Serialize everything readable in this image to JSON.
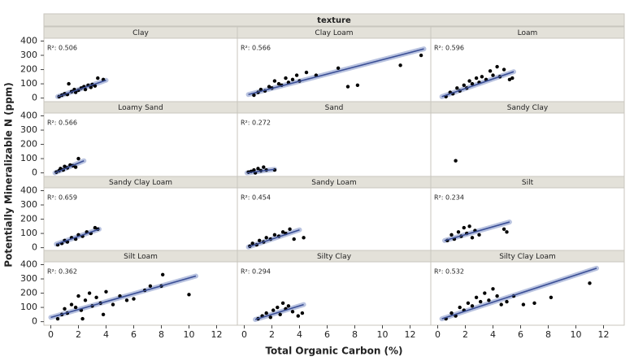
{
  "chart_data": {
    "type": "scatter",
    "title": "texture",
    "x_label": "Total Organic Carbon (%)",
    "y_label": "Potentially Mineralizable N (ppm)",
    "xlim": [
      -0.5,
      13.5
    ],
    "ylim": [
      -25,
      420
    ],
    "xticks": [
      0,
      2,
      4,
      6,
      8,
      10,
      12
    ],
    "yticks": [
      0,
      100,
      200,
      300,
      400
    ],
    "point_color": "#000000",
    "fit_color": "#3b4f96",
    "band_color": "#b9c3e0",
    "panels": [
      {
        "name": "Clay",
        "annotation": "R²: 0.506",
        "x": [
          0.6,
          0.8,
          1.0,
          1.2,
          1.3,
          1.5,
          1.7,
          1.8,
          2.0,
          2.2,
          2.4,
          2.5,
          2.7,
          2.9,
          3.0,
          3.2,
          3.4,
          3.8
        ],
        "y": [
          10,
          20,
          30,
          25,
          100,
          45,
          60,
          40,
          55,
          70,
          80,
          60,
          90,
          75,
          95,
          85,
          140,
          130
        ],
        "fit": {
          "x": [
            0.5,
            4.0
          ],
          "y": [
            10,
            125
          ]
        }
      },
      {
        "name": "Clay Loam",
        "annotation": "R²: 0.566",
        "x": [
          0.7,
          1.0,
          1.2,
          1.5,
          1.8,
          2.0,
          2.2,
          2.5,
          2.7,
          3.0,
          3.2,
          3.5,
          3.8,
          4.0,
          4.5,
          5.2,
          6.8,
          7.5,
          8.2,
          11.3,
          12.8
        ],
        "y": [
          20,
          40,
          60,
          50,
          80,
          70,
          120,
          100,
          90,
          140,
          110,
          130,
          160,
          120,
          180,
          160,
          210,
          80,
          90,
          230,
          300
        ],
        "fit": {
          "x": [
            0.3,
            13
          ],
          "y": [
            25,
            345
          ]
        }
      },
      {
        "name": "Loam",
        "annotation": "R²: 0.596",
        "x": [
          0.6,
          0.9,
          1.1,
          1.4,
          1.6,
          1.9,
          2.1,
          2.3,
          2.5,
          2.8,
          3.0,
          3.2,
          3.5,
          3.8,
          4.0,
          4.3,
          4.5,
          4.8,
          5.2,
          5.4
        ],
        "y": [
          10,
          40,
          30,
          70,
          50,
          90,
          70,
          120,
          100,
          140,
          110,
          150,
          130,
          190,
          160,
          220,
          150,
          200,
          130,
          140
        ],
        "fit": {
          "x": [
            0.3,
            5.5
          ],
          "y": [
            10,
            185
          ]
        }
      },
      {
        "name": "Loamy Sand",
        "annotation": "R²: 0.566",
        "x": [
          0.4,
          0.6,
          0.7,
          0.9,
          1.0,
          1.2,
          1.4,
          1.6,
          2.0,
          1.8
        ],
        "y": [
          5,
          15,
          30,
          20,
          45,
          35,
          55,
          50,
          100,
          40
        ],
        "fit": {
          "x": [
            0.3,
            2.4
          ],
          "y": [
            0,
            85
          ]
        }
      },
      {
        "name": "Sand",
        "annotation": "R²: 0.272",
        "x": [
          0.3,
          0.5,
          0.7,
          0.8,
          1.0,
          1.2,
          1.4,
          1.6,
          2.2
        ],
        "y": [
          5,
          10,
          20,
          0,
          30,
          15,
          40,
          20,
          20
        ],
        "fit": {
          "x": [
            0.2,
            2.2
          ],
          "y": [
            0,
            25
          ]
        }
      },
      {
        "name": "Sandy Clay",
        "x": [
          1.3
        ],
        "y": [
          85
        ]
      },
      {
        "name": "Sandy Clay Loam",
        "annotation": "R²: 0.659",
        "x": [
          0.5,
          0.8,
          1.0,
          1.2,
          1.5,
          1.8,
          2.0,
          2.3,
          2.6,
          2.9,
          3.2,
          3.4
        ],
        "y": [
          20,
          30,
          50,
          40,
          70,
          60,
          90,
          80,
          110,
          100,
          140,
          130
        ],
        "fit": {
          "x": [
            0.4,
            3.5
          ],
          "y": [
            25,
            130
          ]
        }
      },
      {
        "name": "Sandy Loam",
        "annotation": "R²: 0.454",
        "x": [
          0.4,
          0.6,
          0.9,
          1.1,
          1.4,
          1.6,
          1.9,
          2.2,
          2.5,
          2.8,
          3.0,
          3.3,
          3.6,
          4.3
        ],
        "y": [
          10,
          30,
          20,
          50,
          40,
          70,
          60,
          90,
          80,
          110,
          100,
          130,
          60,
          70
        ],
        "fit": {
          "x": [
            0.3,
            4.0
          ],
          "y": [
            5,
            125
          ]
        }
      },
      {
        "name": "Silt",
        "annotation": "R²: 0.234",
        "x": [
          0.7,
          1.0,
          1.2,
          1.5,
          1.7,
          1.9,
          2.1,
          2.3,
          2.5,
          2.7,
          3.0,
          4.8,
          5.0
        ],
        "y": [
          50,
          90,
          60,
          110,
          80,
          140,
          100,
          150,
          70,
          120,
          90,
          130,
          110
        ],
        "fit": {
          "x": [
            0.5,
            5.2
          ],
          "y": [
            50,
            180
          ]
        }
      },
      {
        "name": "Silt Loam",
        "annotation": "R²: 0.362",
        "x": [
          0.5,
          0.8,
          1.0,
          1.2,
          1.5,
          1.8,
          2.0,
          2.2,
          2.5,
          2.8,
          3.0,
          3.3,
          3.6,
          4.0,
          4.5,
          5.0,
          5.5,
          6.0,
          6.8,
          7.2,
          8.1,
          8.0,
          10.0,
          2.3,
          3.8
        ],
        "y": [
          20,
          50,
          90,
          60,
          120,
          100,
          180,
          80,
          150,
          200,
          110,
          170,
          130,
          210,
          120,
          180,
          150,
          160,
          220,
          250,
          330,
          250,
          190,
          20,
          50
        ],
        "fit": {
          "x": [
            0,
            10.5
          ],
          "y": [
            30,
            320
          ]
        }
      },
      {
        "name": "Silty Clay",
        "annotation": "R²: 0.294",
        "x": [
          1.0,
          1.3,
          1.6,
          1.9,
          2.1,
          2.4,
          2.6,
          2.8,
          3.0,
          3.2,
          3.5,
          4.2,
          3.9
        ],
        "y": [
          20,
          40,
          60,
          30,
          80,
          100,
          50,
          130,
          90,
          110,
          70,
          60,
          40
        ],
        "fit": {
          "x": [
            0.8,
            4.3
          ],
          "y": [
            15,
            120
          ]
        }
      },
      {
        "name": "Silty Clay Loam",
        "annotation": "R²: 0.532",
        "x": [
          0.6,
          1.0,
          1.3,
          1.6,
          1.9,
          2.2,
          2.5,
          2.8,
          3.1,
          3.4,
          3.7,
          4.0,
          4.3,
          4.6,
          5.0,
          5.5,
          6.2,
          7.0,
          8.2,
          11.0
        ],
        "y": [
          20,
          60,
          40,
          100,
          80,
          130,
          110,
          170,
          140,
          200,
          150,
          230,
          180,
          120,
          140,
          180,
          120,
          130,
          170,
          270
        ],
        "fit": {
          "x": [
            0.3,
            11.5
          ],
          "y": [
            20,
            375
          ]
        }
      }
    ]
  }
}
